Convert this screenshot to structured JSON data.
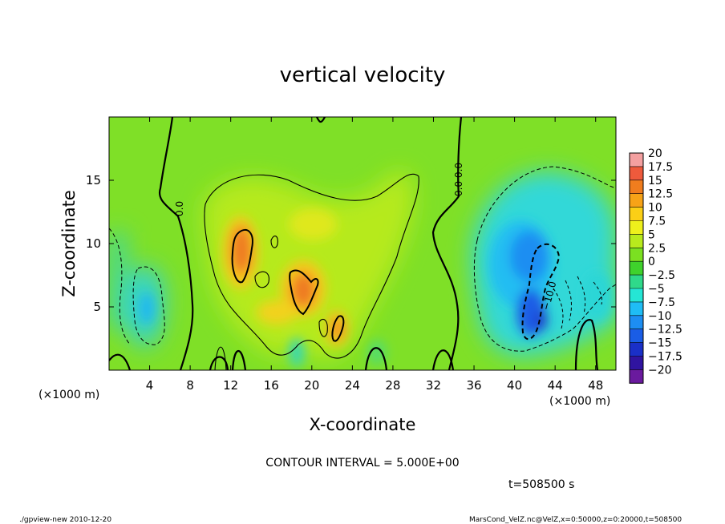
{
  "chart_data": {
    "type": "heatmap",
    "title": "vertical velocity",
    "xlabel": "X-coordinate",
    "ylabel": "Z-coordinate",
    "x_unit": "(×1000 m)",
    "y_unit": "(×1000 m)",
    "xlim": [
      0,
      50
    ],
    "ylim": [
      0,
      20
    ],
    "x_ticks": [
      4,
      8,
      12,
      16,
      20,
      24,
      28,
      32,
      36,
      40,
      44,
      48
    ],
    "y_ticks": [
      5,
      10,
      15
    ],
    "colorbar": {
      "levels": [
        20,
        17.5,
        15,
        12.5,
        10,
        7.5,
        5,
        2.5,
        0,
        -2.5,
        -5,
        -7.5,
        -10,
        -12.5,
        -15,
        -17.5,
        -20
      ],
      "labels": [
        "20",
        "17.5",
        "15",
        "12.5",
        "10",
        "7.5",
        "5",
        "2.5",
        "0",
        "−2.5",
        "−5",
        "−7.5",
        "−10",
        "−12.5",
        "−15",
        "−17.5",
        "−20"
      ],
      "colors": [
        "#f4a0a0",
        "#ee5a3c",
        "#f07d1e",
        "#f7a317",
        "#fbcf16",
        "#eef01c",
        "#b8ea1d",
        "#7be021",
        "#3fd22c",
        "#2fd98a",
        "#25e6d5",
        "#1fbdf5",
        "#1d8ef2",
        "#1a5de6",
        "#1a30c8",
        "#3014a0",
        "#6a1a9e"
      ]
    },
    "contour_interval": "CONTOUR INTERVAL = 5.000E+00",
    "contour_labels": [
      "0.0",
      "0.0",
      "0.0",
      "−10.0"
    ],
    "time": "t=508500 s",
    "features": [
      {
        "kind": "updraft",
        "x": 13,
        "z": 9,
        "w": 12
      },
      {
        "kind": "updraft",
        "x": 19,
        "z": 6.5,
        "w": 12
      },
      {
        "kind": "updraft",
        "x": 22.5,
        "z": 3,
        "w": 9
      },
      {
        "kind": "updraft",
        "x": 20,
        "z": 11,
        "w": 5
      },
      {
        "kind": "downdraft",
        "x": 42,
        "z": 6.5,
        "w": -11
      },
      {
        "kind": "downdraft",
        "x": 41,
        "z": 9,
        "w": -9
      },
      {
        "kind": "downdraft",
        "x": 4,
        "z": 5,
        "w": -6
      },
      {
        "kind": "downdraft",
        "x": 37.5,
        "z": 7,
        "w": -5
      }
    ]
  },
  "footer": {
    "left": "./gpview-new  2010-12-20",
    "right": "MarsCond_VelZ.nc@VelZ,x=0:50000,z=0:20000,t=508500"
  }
}
